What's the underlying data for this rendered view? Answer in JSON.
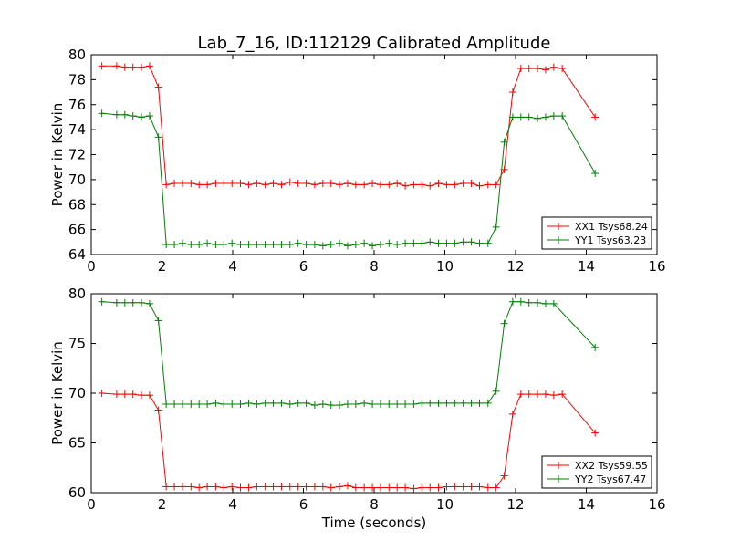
{
  "chart_data": [
    {
      "type": "line",
      "title": "Lab_7_16, ID:112129 Calibrated Amplitude",
      "xlabel": "",
      "ylabel": "Power in Kelvin",
      "xlim": [
        0,
        16
      ],
      "ylim": [
        64,
        80
      ],
      "xticks": [
        "0",
        "2",
        "4",
        "6",
        "8",
        "10",
        "12",
        "14",
        "16"
      ],
      "yticks": [
        "64",
        "66",
        "68",
        "70",
        "72",
        "74",
        "76",
        "78",
        "80"
      ],
      "legend_position": "lower-right",
      "x": [
        0.3,
        0.72,
        0.95,
        1.18,
        1.42,
        1.65,
        1.9,
        2.12,
        2.35,
        2.58,
        2.82,
        3.05,
        3.28,
        3.52,
        3.75,
        3.98,
        4.22,
        4.45,
        4.68,
        4.92,
        5.15,
        5.38,
        5.62,
        5.85,
        6.08,
        6.32,
        6.55,
        6.78,
        7.02,
        7.25,
        7.48,
        7.72,
        7.95,
        8.18,
        8.42,
        8.65,
        8.88,
        9.12,
        9.35,
        9.58,
        9.82,
        10.05,
        10.28,
        10.52,
        10.75,
        10.98,
        11.22,
        11.45,
        11.68,
        11.92,
        12.15,
        12.38,
        12.62,
        12.85,
        13.08,
        13.32,
        13.55,
        13.78,
        14.02,
        14.25
      ],
      "series": [
        {
          "name": "XX1 Tsys68.24",
          "color": "#ff0000",
          "values": [
            79.1,
            79.1,
            79.0,
            79.0,
            79.0,
            79.1,
            77.4,
            69.6,
            69.7,
            69.7,
            69.7,
            69.6,
            69.6,
            69.7,
            69.7,
            69.7,
            69.7,
            69.6,
            69.7,
            69.6,
            69.7,
            69.6,
            69.8,
            69.7,
            69.7,
            69.6,
            69.7,
            69.7,
            69.6,
            69.7,
            69.6,
            69.6,
            69.7,
            69.6,
            69.6,
            69.7,
            69.5,
            69.6,
            69.6,
            69.5,
            69.7,
            69.6,
            69.6,
            69.7,
            69.7,
            69.5,
            69.6,
            69.6,
            70.8,
            77.0,
            78.9,
            78.9,
            78.9,
            78.8,
            79.0,
            78.9,
            null,
            null,
            null,
            75.0
          ]
        },
        {
          "name": "YY1 Tsys63.23",
          "color": "#008000",
          "values": [
            75.3,
            75.2,
            75.2,
            75.1,
            75.0,
            75.1,
            73.4,
            64.8,
            64.8,
            64.9,
            64.8,
            64.8,
            64.9,
            64.8,
            64.8,
            64.9,
            64.8,
            64.8,
            64.8,
            64.8,
            64.8,
            64.8,
            64.8,
            64.9,
            64.8,
            64.8,
            64.7,
            64.8,
            64.9,
            64.7,
            64.8,
            64.9,
            64.7,
            64.8,
            64.9,
            64.8,
            64.9,
            64.9,
            64.9,
            65.0,
            64.9,
            64.9,
            64.9,
            65.0,
            65.0,
            64.9,
            64.9,
            66.2,
            73.0,
            75.0,
            75.0,
            75.0,
            74.9,
            75.0,
            75.1,
            75.1,
            null,
            null,
            null,
            70.5
          ]
        }
      ]
    },
    {
      "type": "line",
      "title": "",
      "xlabel": "Time (seconds)",
      "ylabel": "Power in Kelvin",
      "xlim": [
        0,
        16
      ],
      "ylim": [
        60,
        80
      ],
      "xticks": [
        "0",
        "2",
        "4",
        "6",
        "8",
        "10",
        "12",
        "14",
        "16"
      ],
      "yticks": [
        "60",
        "65",
        "70",
        "75",
        "80"
      ],
      "legend_position": "lower-right",
      "x": [
        0.3,
        0.72,
        0.95,
        1.18,
        1.42,
        1.65,
        1.9,
        2.12,
        2.35,
        2.58,
        2.82,
        3.05,
        3.28,
        3.52,
        3.75,
        3.98,
        4.22,
        4.45,
        4.68,
        4.92,
        5.15,
        5.38,
        5.62,
        5.85,
        6.08,
        6.32,
        6.55,
        6.78,
        7.02,
        7.25,
        7.48,
        7.72,
        7.95,
        8.18,
        8.42,
        8.65,
        8.88,
        9.12,
        9.35,
        9.58,
        9.82,
        10.05,
        10.28,
        10.52,
        10.75,
        10.98,
        11.22,
        11.45,
        11.68,
        11.92,
        12.15,
        12.38,
        12.62,
        12.85,
        13.08,
        13.32,
        13.55,
        13.78,
        14.02,
        14.25
      ],
      "series": [
        {
          "name": "XX2 Tsys59.55",
          "color": "#ff0000",
          "values": [
            70.0,
            69.9,
            69.9,
            69.9,
            69.8,
            69.8,
            68.3,
            60.6,
            60.6,
            60.6,
            60.6,
            60.5,
            60.6,
            60.6,
            60.5,
            60.6,
            60.5,
            60.5,
            60.6,
            60.6,
            60.6,
            60.6,
            60.6,
            60.6,
            60.6,
            60.6,
            60.6,
            60.5,
            60.6,
            60.7,
            60.5,
            60.5,
            60.5,
            60.5,
            60.5,
            60.5,
            60.5,
            60.4,
            60.5,
            60.5,
            60.5,
            60.6,
            60.6,
            60.6,
            60.6,
            60.6,
            60.5,
            60.5,
            61.7,
            67.9,
            69.9,
            69.9,
            69.9,
            69.9,
            69.8,
            69.9,
            null,
            null,
            null,
            66.0
          ]
        },
        {
          "name": "YY2 Tsys67.47",
          "color": "#008000",
          "values": [
            79.2,
            79.1,
            79.1,
            79.1,
            79.1,
            79.0,
            77.3,
            68.9,
            68.9,
            68.9,
            68.9,
            68.9,
            68.9,
            69.0,
            68.9,
            68.9,
            68.9,
            69.0,
            68.9,
            69.0,
            69.0,
            69.0,
            68.9,
            69.0,
            69.0,
            68.8,
            68.9,
            68.8,
            68.8,
            68.9,
            68.9,
            69.0,
            68.9,
            68.9,
            68.9,
            68.9,
            68.9,
            68.9,
            69.0,
            69.0,
            69.0,
            69.0,
            69.0,
            69.0,
            69.0,
            69.0,
            69.0,
            70.2,
            77.0,
            79.2,
            79.2,
            79.1,
            79.1,
            79.0,
            79.0,
            null,
            null,
            null,
            null,
            74.6
          ]
        }
      ]
    }
  ]
}
